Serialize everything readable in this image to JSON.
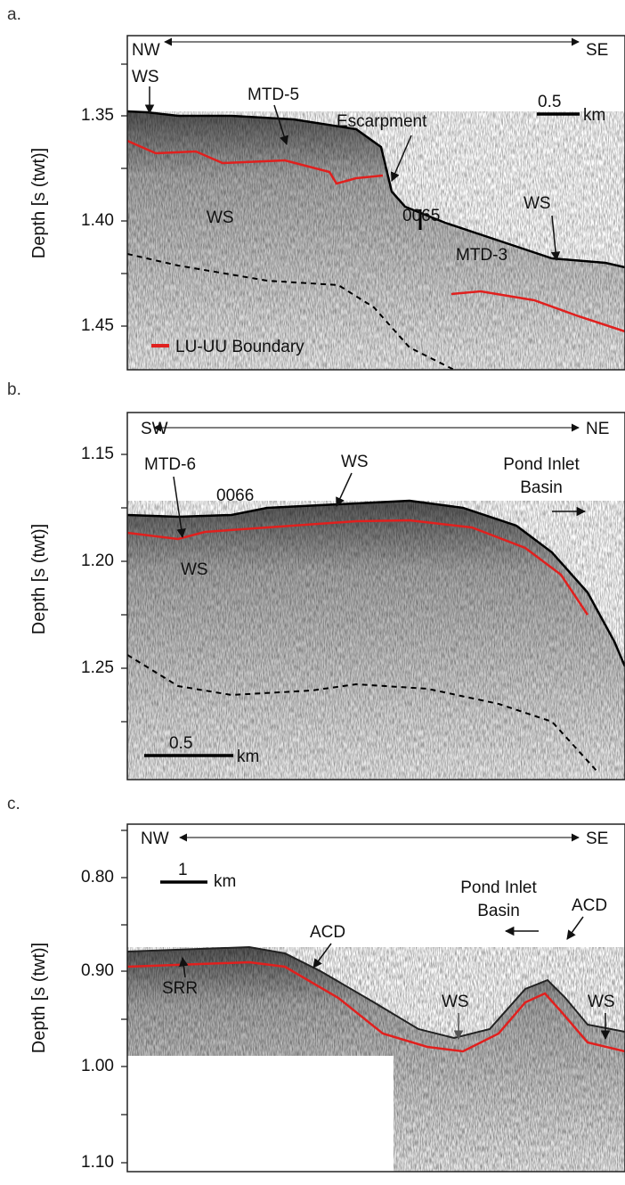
{
  "panels": [
    {
      "label": "a.",
      "y_axis_label": "Depth [s (twt)]",
      "ticks": [
        "1.35",
        "1.40",
        "1.45"
      ],
      "direction": [
        "NW",
        "SE"
      ],
      "annotations": [
        "WS",
        "MTD-5",
        "Escarpment",
        "0065",
        "WS",
        "WS",
        "MTD-3"
      ],
      "scale": {
        "value": "0.5",
        "unit": "km"
      },
      "legend": "LU-UU Boundary"
    },
    {
      "label": "b.",
      "y_axis_label": "Depth [s (twt)]",
      "ticks": [
        "1.15",
        "1.20",
        "1.25"
      ],
      "direction": [
        "SW",
        "NE"
      ],
      "annotations": [
        "MTD-6",
        "0066",
        "WS",
        "WS"
      ],
      "basin": [
        "Pond Inlet",
        "Basin"
      ],
      "scale": {
        "value": "0.5",
        "unit": "km"
      }
    },
    {
      "label": "c.",
      "y_axis_label": "Depth [s (twt)]",
      "ticks": [
        "0.80",
        "0.90",
        "1.00",
        "1.10"
      ],
      "direction": [
        "NW",
        "SE"
      ],
      "annotations": [
        "ACD",
        "SRR",
        "ACD",
        "WS",
        "WS"
      ],
      "basin": [
        "Pond Inlet",
        "Basin"
      ],
      "scale": {
        "value": "1",
        "unit": "km"
      }
    }
  ]
}
